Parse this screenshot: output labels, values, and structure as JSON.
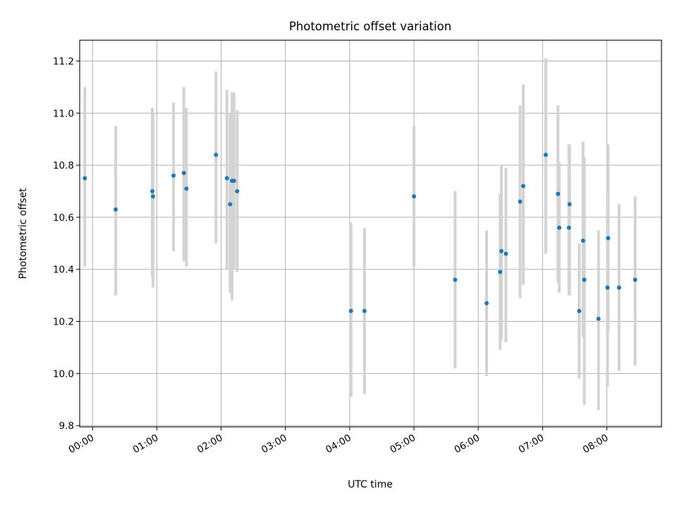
{
  "chart_data": {
    "type": "scatter",
    "title": "Photometric offset variation",
    "xlabel": "UTC time",
    "ylabel": "Photometric offset",
    "xlim": [
      -0.2,
      8.85
    ],
    "ylim": [
      9.795,
      11.28
    ],
    "x_tick_values": [
      0,
      1,
      2,
      3,
      4,
      5,
      6,
      7,
      8
    ],
    "x_tick_labels": [
      "00:00",
      "01:00",
      "02:00",
      "03:00",
      "04:00",
      "05:00",
      "06:00",
      "07:00",
      "08:00"
    ],
    "y_tick_values": [
      9.8,
      10.0,
      10.2,
      10.4,
      10.6,
      10.8,
      11.0,
      11.2
    ],
    "y_tick_labels": [
      "9.8",
      "10.0",
      "10.2",
      "10.4",
      "10.6",
      "10.8",
      "11.0",
      "11.2"
    ],
    "grid": true,
    "marker_color": "#1f77b4",
    "errorbar_color": "#d3d3d3",
    "points": [
      {
        "x": -0.12,
        "y": 10.75,
        "lo": 10.41,
        "hi": 11.1
      },
      {
        "x": 0.36,
        "y": 10.63,
        "lo": 10.3,
        "hi": 10.95
      },
      {
        "x": 0.93,
        "y": 10.7,
        "lo": 10.37,
        "hi": 11.02
      },
      {
        "x": 0.94,
        "y": 10.68,
        "lo": 10.33,
        "hi": 11.0
      },
      {
        "x": 1.26,
        "y": 10.76,
        "lo": 10.47,
        "hi": 11.04
      },
      {
        "x": 1.42,
        "y": 10.77,
        "lo": 10.43,
        "hi": 11.1
      },
      {
        "x": 1.46,
        "y": 10.71,
        "lo": 10.41,
        "hi": 11.02
      },
      {
        "x": 1.92,
        "y": 10.84,
        "lo": 10.5,
        "hi": 11.16
      },
      {
        "x": 2.09,
        "y": 10.75,
        "lo": 10.4,
        "hi": 11.09
      },
      {
        "x": 2.14,
        "y": 10.65,
        "lo": 10.31,
        "hi": 11.0
      },
      {
        "x": 2.17,
        "y": 10.74,
        "lo": 10.28,
        "hi": 11.08
      },
      {
        "x": 2.2,
        "y": 10.74,
        "lo": 10.4,
        "hi": 11.08
      },
      {
        "x": 2.25,
        "y": 10.7,
        "lo": 10.39,
        "hi": 11.01
      },
      {
        "x": 4.02,
        "y": 10.24,
        "lo": 9.91,
        "hi": 10.58
      },
      {
        "x": 4.23,
        "y": 10.24,
        "lo": 9.92,
        "hi": 10.56
      },
      {
        "x": 5.0,
        "y": 10.68,
        "lo": 10.41,
        "hi": 10.95
      },
      {
        "x": 5.64,
        "y": 10.36,
        "lo": 10.02,
        "hi": 10.7
      },
      {
        "x": 6.13,
        "y": 10.27,
        "lo": 9.99,
        "hi": 10.55
      },
      {
        "x": 6.34,
        "y": 10.39,
        "lo": 10.09,
        "hi": 10.69
      },
      {
        "x": 6.36,
        "y": 10.47,
        "lo": 10.13,
        "hi": 10.8
      },
      {
        "x": 6.43,
        "y": 10.46,
        "lo": 10.12,
        "hi": 10.79
      },
      {
        "x": 6.65,
        "y": 10.66,
        "lo": 10.29,
        "hi": 11.03
      },
      {
        "x": 6.7,
        "y": 10.72,
        "lo": 10.34,
        "hi": 11.11
      },
      {
        "x": 7.05,
        "y": 10.84,
        "lo": 10.46,
        "hi": 11.21
      },
      {
        "x": 7.24,
        "y": 10.69,
        "lo": 10.35,
        "hi": 11.03
      },
      {
        "x": 7.26,
        "y": 10.56,
        "lo": 10.31,
        "hi": 10.81
      },
      {
        "x": 7.41,
        "y": 10.56,
        "lo": 10.3,
        "hi": 10.88
      },
      {
        "x": 7.42,
        "y": 10.65,
        "lo": 10.3,
        "hi": 10.88
      },
      {
        "x": 7.57,
        "y": 10.24,
        "lo": 9.98,
        "hi": 10.5
      },
      {
        "x": 7.63,
        "y": 10.51,
        "lo": 10.14,
        "hi": 10.89
      },
      {
        "x": 7.65,
        "y": 10.36,
        "lo": 9.88,
        "hi": 10.83
      },
      {
        "x": 7.87,
        "y": 10.21,
        "lo": 9.86,
        "hi": 10.55
      },
      {
        "x": 8.01,
        "y": 10.33,
        "lo": 9.95,
        "hi": 10.7
      },
      {
        "x": 8.02,
        "y": 10.52,
        "lo": 10.16,
        "hi": 10.88
      },
      {
        "x": 8.19,
        "y": 10.33,
        "lo": 10.01,
        "hi": 10.65
      },
      {
        "x": 8.44,
        "y": 10.36,
        "lo": 10.03,
        "hi": 10.68
      }
    ]
  }
}
